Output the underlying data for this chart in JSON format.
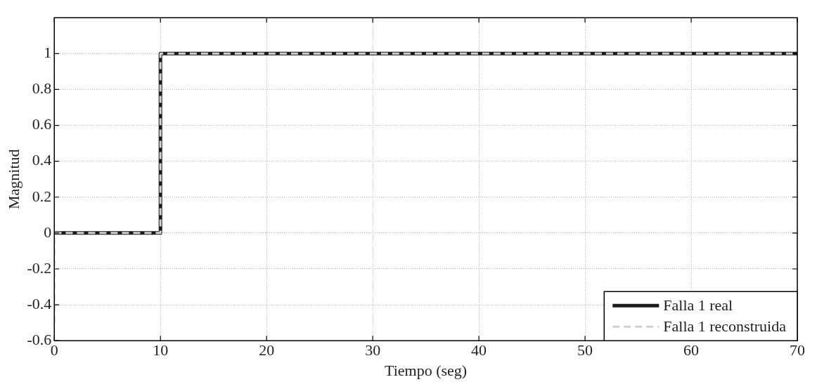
{
  "chart_data": {
    "type": "line",
    "xlabel": "Tiempo (seg)",
    "ylabel": "Magnitud",
    "xlim": [
      0,
      70
    ],
    "xticks": [
      0,
      10,
      20,
      30,
      40,
      50,
      60,
      70
    ],
    "ylim": [
      -0.6,
      1.2
    ],
    "yticks": [
      -0.6,
      -0.4,
      -0.2,
      0,
      0.2,
      0.4,
      0.6,
      0.8,
      1
    ],
    "grid": true,
    "legend": "bottom right",
    "marker": "none",
    "series": [
      {
        "name": "Falla 1 real",
        "color": "#1a1a1a",
        "line_style": "solid",
        "x": [
          0,
          10,
          10,
          70
        ],
        "values": [
          0,
          0,
          1,
          1
        ]
      },
      {
        "name": "Falla 1 reconstruida",
        "color": "#d0d0d0",
        "line_style": "dashed",
        "x": [
          0,
          0,
          10,
          10,
          70
        ],
        "values": [
          -0.5,
          0,
          0,
          1,
          1
        ]
      }
    ]
  }
}
